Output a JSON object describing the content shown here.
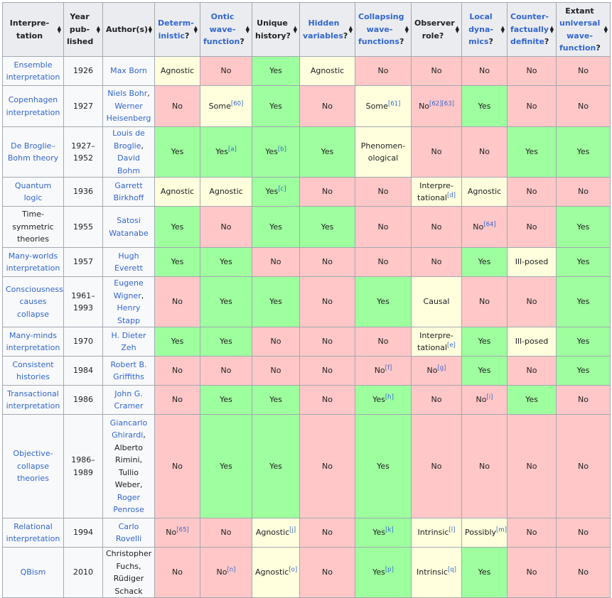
{
  "header": {
    "interpretation": "Interpre-tation",
    "year": "Year pub-lished",
    "authors": "Author(s)",
    "deterministic": "Determ-inistic",
    "ontic": "Ontic wave-function",
    "unique": "Unique history?",
    "hidden": "Hidden variables",
    "collapsing": "Collapsing wave-functions",
    "observer": "Observer role?",
    "local": "Local dyna-mics",
    "counterfactual": "Counter-factually definite",
    "extant_prefix": "Extant",
    "extant_link": "universal wave-function",
    "q": "?"
  },
  "colors": {
    "yes": "#9eff9e",
    "no": "#ffc7c7",
    "mid": "#ffffdd",
    "header": "#eaecf0",
    "link": "#3366cc"
  },
  "rows": [
    {
      "interpretation": "Ensemble interpretation",
      "year": "1926",
      "authors": "Max Born",
      "cells": [
        {
          "t": "Agnostic",
          "sup": ""
        },
        {
          "t": "No",
          "sup": ""
        },
        {
          "t": "Yes",
          "sup": ""
        },
        {
          "t": "Agnostic",
          "sup": ""
        },
        {
          "t": "No",
          "sup": ""
        },
        {
          "t": "No",
          "sup": ""
        },
        {
          "t": "No",
          "sup": ""
        },
        {
          "t": "No",
          "sup": ""
        },
        {
          "t": "No",
          "sup": ""
        }
      ]
    },
    {
      "interpretation": "Copenhagen interpretation",
      "year": "1927",
      "authors": "Niels Bohr, Werner Heisenberg",
      "cells": [
        {
          "t": "No",
          "sup": ""
        },
        {
          "t": "Some",
          "sup": "[60]"
        },
        {
          "t": "Yes",
          "sup": ""
        },
        {
          "t": "No",
          "sup": ""
        },
        {
          "t": "Some",
          "sup": "[61]"
        },
        {
          "t": "No",
          "sup": "[62][63]"
        },
        {
          "t": "Yes",
          "sup": ""
        },
        {
          "t": "No",
          "sup": ""
        },
        {
          "t": "No",
          "sup": ""
        }
      ]
    },
    {
      "interpretation": "De Broglie–Bohm theory",
      "year": "1927–1952",
      "authors": "Louis de Broglie, David Bohm",
      "cells": [
        {
          "t": "Yes",
          "sup": ""
        },
        {
          "t": "Yes",
          "sup": "[a]"
        },
        {
          "t": "Yes",
          "sup": "[b]"
        },
        {
          "t": "Yes",
          "sup": ""
        },
        {
          "t": "Phenomen-ological",
          "sup": ""
        },
        {
          "t": "No",
          "sup": ""
        },
        {
          "t": "No",
          "sup": ""
        },
        {
          "t": "Yes",
          "sup": ""
        },
        {
          "t": "Yes",
          "sup": ""
        }
      ]
    },
    {
      "interpretation": "Quantum logic",
      "year": "1936",
      "authors": "Garrett Birkhoff",
      "cells": [
        {
          "t": "Agnostic",
          "sup": ""
        },
        {
          "t": "Agnostic",
          "sup": ""
        },
        {
          "t": "Yes",
          "sup": "[c]"
        },
        {
          "t": "No",
          "sup": ""
        },
        {
          "t": "No",
          "sup": ""
        },
        {
          "t": "Interpre-tational",
          "sup": "[d]"
        },
        {
          "t": "Agnostic",
          "sup": ""
        },
        {
          "t": "No",
          "sup": ""
        },
        {
          "t": "No",
          "sup": ""
        }
      ]
    },
    {
      "interpretation": "Time-symmetric theories",
      "year": "1955",
      "authors": "Satosi Watanabe",
      "cells": [
        {
          "t": "Yes",
          "sup": ""
        },
        {
          "t": "No",
          "sup": ""
        },
        {
          "t": "Yes",
          "sup": ""
        },
        {
          "t": "Yes",
          "sup": ""
        },
        {
          "t": "No",
          "sup": ""
        },
        {
          "t": "No",
          "sup": ""
        },
        {
          "t": "No",
          "sup": "[64]"
        },
        {
          "t": "No",
          "sup": ""
        },
        {
          "t": "Yes",
          "sup": ""
        }
      ]
    },
    {
      "interpretation": "Many-worlds interpretation",
      "year": "1957",
      "authors": "Hugh Everett",
      "cells": [
        {
          "t": "Yes",
          "sup": ""
        },
        {
          "t": "Yes",
          "sup": ""
        },
        {
          "t": "No",
          "sup": ""
        },
        {
          "t": "No",
          "sup": ""
        },
        {
          "t": "No",
          "sup": ""
        },
        {
          "t": "No",
          "sup": ""
        },
        {
          "t": "Yes",
          "sup": ""
        },
        {
          "t": "Ill-posed",
          "sup": ""
        },
        {
          "t": "Yes",
          "sup": ""
        }
      ]
    },
    {
      "interpretation": "Consciousness causes collapse",
      "year": "1961–1993",
      "authors": "Eugene Wigner, Henry Stapp",
      "cells": [
        {
          "t": "No",
          "sup": ""
        },
        {
          "t": "Yes",
          "sup": ""
        },
        {
          "t": "Yes",
          "sup": ""
        },
        {
          "t": "No",
          "sup": ""
        },
        {
          "t": "Yes",
          "sup": ""
        },
        {
          "t": "Causal",
          "sup": ""
        },
        {
          "t": "No",
          "sup": ""
        },
        {
          "t": "No",
          "sup": ""
        },
        {
          "t": "Yes",
          "sup": ""
        }
      ]
    },
    {
      "interpretation": "Many-minds interpretation",
      "year": "1970",
      "authors": "H. Dieter Zeh",
      "cells": [
        {
          "t": "Yes",
          "sup": ""
        },
        {
          "t": "Yes",
          "sup": ""
        },
        {
          "t": "No",
          "sup": ""
        },
        {
          "t": "No",
          "sup": ""
        },
        {
          "t": "No",
          "sup": ""
        },
        {
          "t": "Interpre-tational",
          "sup": "[e]"
        },
        {
          "t": "Yes",
          "sup": ""
        },
        {
          "t": "Ill-posed",
          "sup": ""
        },
        {
          "t": "Yes",
          "sup": ""
        }
      ]
    },
    {
      "interpretation": "Consistent histories",
      "year": "1984",
      "authors": "Robert B. Griffiths",
      "cells": [
        {
          "t": "No",
          "sup": ""
        },
        {
          "t": "No",
          "sup": ""
        },
        {
          "t": "No",
          "sup": ""
        },
        {
          "t": "No",
          "sup": ""
        },
        {
          "t": "No",
          "sup": "[f]"
        },
        {
          "t": "No",
          "sup": "[g]"
        },
        {
          "t": "Yes",
          "sup": ""
        },
        {
          "t": "No",
          "sup": ""
        },
        {
          "t": "Yes",
          "sup": ""
        }
      ]
    },
    {
      "interpretation": "Transactional interpretation",
      "year": "1986",
      "authors": "John G. Cramer",
      "cells": [
        {
          "t": "No",
          "sup": ""
        },
        {
          "t": "Yes",
          "sup": ""
        },
        {
          "t": "Yes",
          "sup": ""
        },
        {
          "t": "No",
          "sup": ""
        },
        {
          "t": "Yes",
          "sup": "[h]"
        },
        {
          "t": "No",
          "sup": ""
        },
        {
          "t": "No",
          "sup": "[i]"
        },
        {
          "t": "Yes",
          "sup": ""
        },
        {
          "t": "No",
          "sup": ""
        }
      ]
    },
    {
      "interpretation": "Objective-collapse theories",
      "year": "1986–1989",
      "authors": "Giancarlo Ghirardi, Alberto Rimini, Tullio Weber, Roger Penrose",
      "cells": [
        {
          "t": "No",
          "sup": ""
        },
        {
          "t": "Yes",
          "sup": ""
        },
        {
          "t": "Yes",
          "sup": ""
        },
        {
          "t": "No",
          "sup": ""
        },
        {
          "t": "Yes",
          "sup": ""
        },
        {
          "t": "No",
          "sup": ""
        },
        {
          "t": "No",
          "sup": ""
        },
        {
          "t": "No",
          "sup": ""
        },
        {
          "t": "No",
          "sup": ""
        }
      ]
    },
    {
      "interpretation": "Relational interpretation",
      "year": "1994",
      "authors": "Carlo Rovelli",
      "cells": [
        {
          "t": "No",
          "sup": "[65]"
        },
        {
          "t": "No",
          "sup": ""
        },
        {
          "t": "Agnostic",
          "sup": "[j]"
        },
        {
          "t": "No",
          "sup": ""
        },
        {
          "t": "Yes",
          "sup": "[k]"
        },
        {
          "t": "Intrinsic",
          "sup": "[l]"
        },
        {
          "t": "Possibly",
          "sup": "[m]"
        },
        {
          "t": "No",
          "sup": ""
        },
        {
          "t": "No",
          "sup": ""
        }
      ]
    },
    {
      "interpretation": "QBism",
      "year": "2010",
      "authors": "Christopher Fuchs, Rüdiger Schack",
      "cells": [
        {
          "t": "No",
          "sup": ""
        },
        {
          "t": "No",
          "sup": "[n]"
        },
        {
          "t": "Agnostic",
          "sup": "[o]"
        },
        {
          "t": "No",
          "sup": ""
        },
        {
          "t": "Yes",
          "sup": "[p]"
        },
        {
          "t": "Intrinsic",
          "sup": "[q]"
        },
        {
          "t": "Yes",
          "sup": ""
        },
        {
          "t": "No",
          "sup": ""
        },
        {
          "t": "No",
          "sup": ""
        }
      ]
    }
  ]
}
